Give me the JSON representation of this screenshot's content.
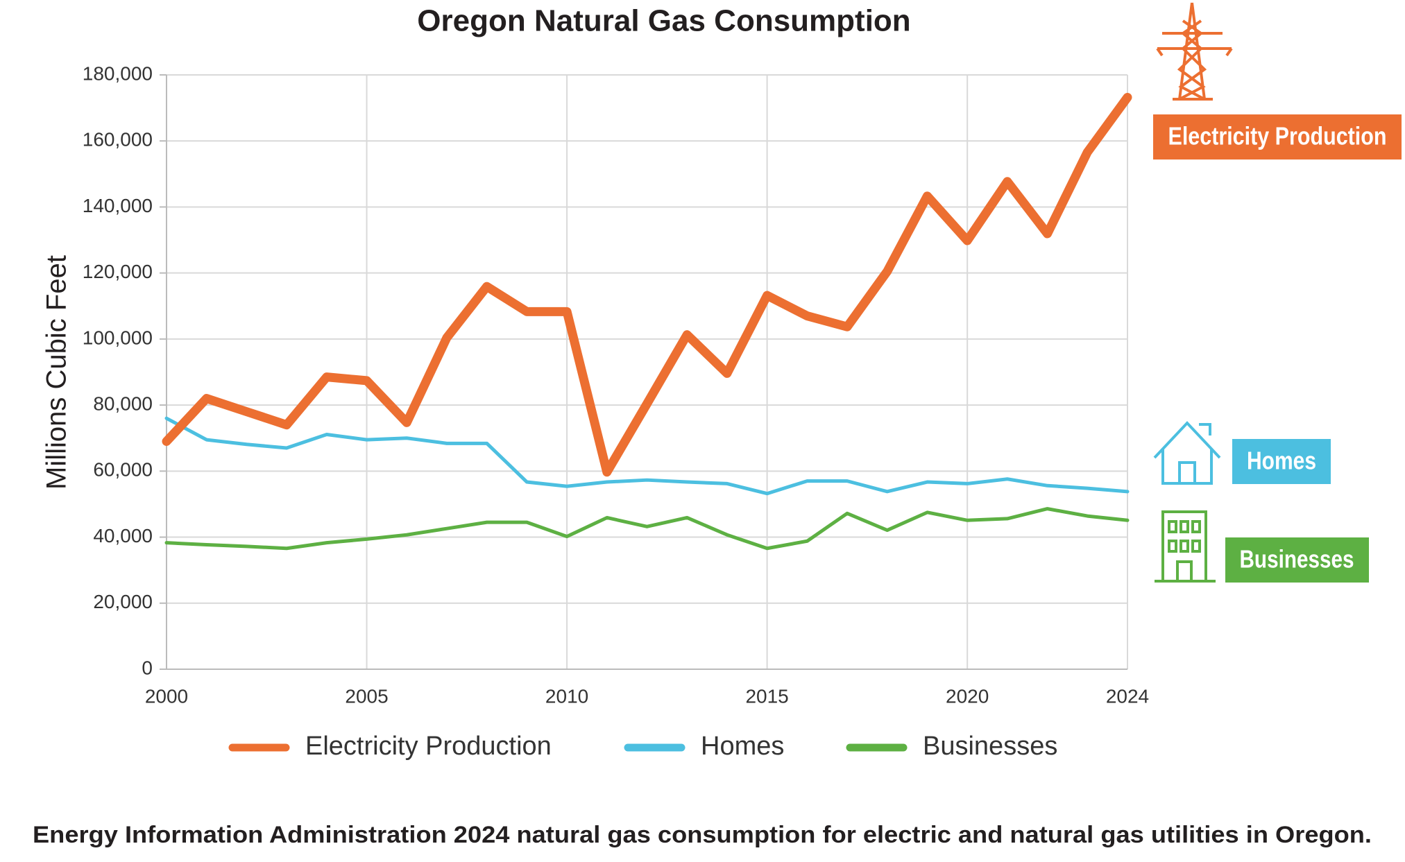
{
  "chart_data": {
    "type": "line",
    "title": "Oregon Natural Gas Consumption",
    "ylabel": "Millions Cubic Feet",
    "caption": "Energy Information Administration 2024 natural gas consumption for electric and natural gas utilities in Oregon.",
    "x": [
      2000,
      2001,
      2002,
      2003,
      2004,
      2005,
      2006,
      2007,
      2008,
      2009,
      2010,
      2011,
      2012,
      2013,
      2014,
      2015,
      2016,
      2017,
      2018,
      2019,
      2020,
      2021,
      2022,
      2023,
      2024
    ],
    "series": [
      {
        "name": "Electricity Production",
        "color": "#ec6f31",
        "values": [
          69000,
          82000,
          78000,
          74000,
          88500,
          87400,
          74700,
          100400,
          115900,
          108300,
          108300,
          59700,
          80400,
          101300,
          89600,
          113200,
          107000,
          103700,
          120500,
          143300,
          129800,
          147700,
          131900,
          156600,
          173200
        ]
      },
      {
        "name": "Homes",
        "color": "#4cbfe0",
        "values": [
          76000,
          69500,
          68100,
          67000,
          71100,
          69500,
          70000,
          68400,
          68400,
          56700,
          55400,
          56700,
          57300,
          56700,
          56200,
          53200,
          57000,
          57000,
          53800,
          56700,
          56200,
          57600,
          55600,
          54800,
          53800
        ]
      },
      {
        "name": "Businesses",
        "color": "#5db043",
        "values": [
          38300,
          37700,
          37200,
          36600,
          38300,
          39400,
          40700,
          42600,
          44500,
          44500,
          40200,
          45900,
          43200,
          45900,
          40700,
          36600,
          38800,
          47200,
          42100,
          47500,
          45100,
          45600,
          48600,
          46400,
          45100
        ]
      }
    ],
    "xlim": [
      2000,
      2024
    ],
    "xticks": [
      2000,
      2005,
      2010,
      2015,
      2020,
      2024
    ],
    "ylim": [
      0,
      180000
    ],
    "yticks": [
      0,
      {
        "value": 20000,
        "label": "20,000"
      },
      {
        "value": 40000,
        "label": "40,000"
      },
      {
        "value": 60000,
        "label": "60,000"
      },
      {
        "value": 80000,
        "label": "80,000"
      },
      {
        "value": 100000,
        "label": "100,000"
      },
      {
        "value": 120000,
        "label": "120,000"
      },
      {
        "value": 140000,
        "label": "140,000"
      },
      {
        "value": 160000,
        "label": "160,000"
      },
      {
        "value": 180000,
        "label": "180,000"
      }
    ],
    "grid": true,
    "legend": "bottom"
  }
}
